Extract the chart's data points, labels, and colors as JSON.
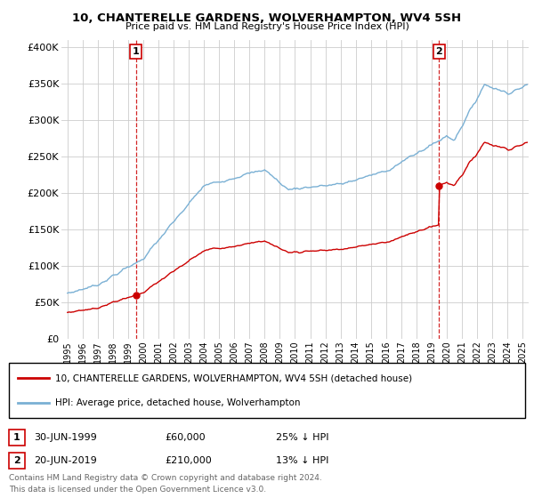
{
  "title": "10, CHANTERELLE GARDENS, WOLVERHAMPTON, WV4 5SH",
  "subtitle": "Price paid vs. HM Land Registry's House Price Index (HPI)",
  "ylim": [
    0,
    410000
  ],
  "yticks": [
    0,
    50000,
    100000,
    150000,
    200000,
    250000,
    300000,
    350000,
    400000
  ],
  "ytick_labels": [
    "£0",
    "£50K",
    "£100K",
    "£150K",
    "£200K",
    "£250K",
    "£300K",
    "£350K",
    "£400K"
  ],
  "xlim_start": 1994.6,
  "xlim_end": 2025.4,
  "background_color": "#ffffff",
  "grid_color": "#cccccc",
  "transaction1_date": 1999.5,
  "transaction1_price": 60000,
  "transaction2_date": 2019.5,
  "transaction2_price": 210000,
  "red_line_color": "#cc0000",
  "blue_line_color": "#7ab0d4",
  "vline_color": "#cc0000",
  "legend_label_red": "10, CHANTERELLE GARDENS, WOLVERHAMPTON, WV4 5SH (detached house)",
  "legend_label_blue": "HPI: Average price, detached house, Wolverhampton",
  "annotation1_date": "30-JUN-1999",
  "annotation1_price": "£60,000",
  "annotation1_pct": "25% ↓ HPI",
  "annotation2_date": "20-JUN-2019",
  "annotation2_price": "£210,000",
  "annotation2_pct": "13% ↓ HPI",
  "footer": "Contains HM Land Registry data © Crown copyright and database right 2024.\nThis data is licensed under the Open Government Licence v3.0."
}
